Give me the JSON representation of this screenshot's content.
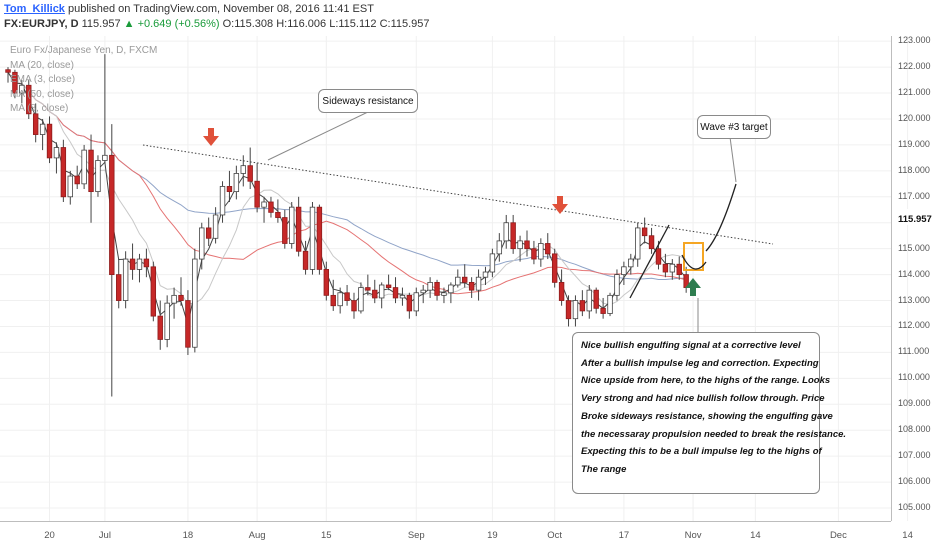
{
  "header": {
    "author": "Tom_Killick",
    "published_text": " published on TradingView.com, November 08, 2016 11:41 EST",
    "symbol": "FX:EURJPY, D",
    "last": " 115.957 ",
    "change": "▲ +0.649 (+0.56%)",
    "ohlc": " O:115.308 H:116.006 L:115.112 C:115.957"
  },
  "legend": {
    "title": "Euro Fx/Japanese Yen, D, FXCM",
    "items": [
      "MA (20, close)",
      "EMA (3, close)",
      "MA (50, close)",
      "MA (8, close)"
    ]
  },
  "annotations": {
    "sideways": "Sideways resistance",
    "wave_target": "Wave #3 target",
    "note_lines": [
      "Nice bullish engulfing signal at a corrective level",
      "After a bullish impulse leg and correction. Expecting",
      "Nice upside from here, to the highs of the range. Looks",
      "Very strong and had nice bullish follow through. Price",
      "Broke sideways resistance, showing the engulfing gave",
      "the necessaray propulsion needed to break the resistance.",
      "Expecting this to be a bull impulse leg to the highs of",
      "The range"
    ]
  },
  "colors": {
    "bull": "#ffffff",
    "bear": "#c62828",
    "ma20": "#e57373",
    "ema3": "#444444",
    "ma50": "#90a4c8",
    "ma8": "#c8c8c8",
    "arrow_down": "#e0513a",
    "arrow_up": "#2e7d4f",
    "highlight": "#f5a623"
  },
  "chart_data": {
    "type": "candlestick",
    "y_ticks": [
      "105.000",
      "106.000",
      "107.000",
      "108.000",
      "109.000",
      "110.000",
      "111.000",
      "112.000",
      "113.000",
      "114.000",
      "115.000",
      "116.000",
      "117.000",
      "118.000",
      "119.000",
      "120.000",
      "121.000",
      "122.000",
      "123.000"
    ],
    "ylim": [
      104.5,
      123.2
    ],
    "last_price": "115.957",
    "x_ticks": [
      {
        "label": "20",
        "i": 6
      },
      {
        "label": "Jul",
        "i": 14
      },
      {
        "label": "18",
        "i": 26
      },
      {
        "label": "Aug",
        "i": 36
      },
      {
        "label": "15",
        "i": 46
      },
      {
        "label": "Sep",
        "i": 59
      },
      {
        "label": "19",
        "i": 70
      },
      {
        "label": "Oct",
        "i": 79
      },
      {
        "label": "17",
        "i": 89
      },
      {
        "label": "Nov",
        "i": 99
      },
      {
        "label": "14",
        "i": 108
      },
      {
        "label": "Dec",
        "i": 120
      },
      {
        "label": "14",
        "i": 130
      }
    ],
    "candles": [
      [
        121.9,
        122.0,
        121.4,
        121.8
      ],
      [
        121.8,
        121.9,
        120.8,
        121.0
      ],
      [
        121.0,
        121.5,
        120.6,
        121.3
      ],
      [
        121.3,
        121.5,
        120.0,
        120.2
      ],
      [
        120.2,
        120.6,
        119.1,
        119.4
      ],
      [
        119.4,
        120.0,
        118.8,
        119.8
      ],
      [
        119.8,
        120.1,
        118.3,
        118.5
      ],
      [
        118.5,
        119.1,
        117.9,
        118.9
      ],
      [
        118.9,
        119.2,
        116.8,
        117.0
      ],
      [
        117.0,
        118.0,
        116.7,
        117.8
      ],
      [
        117.8,
        118.2,
        117.3,
        117.5
      ],
      [
        117.5,
        119.0,
        117.3,
        118.8
      ],
      [
        118.8,
        119.4,
        116.0,
        117.2
      ],
      [
        117.2,
        118.6,
        117.0,
        118.4
      ],
      [
        118.4,
        122.5,
        118.3,
        118.6
      ],
      [
        118.6,
        119.8,
        109.3,
        114.0
      ],
      [
        114.0,
        114.6,
        112.7,
        113.0
      ],
      [
        113.0,
        114.9,
        112.7,
        114.6
      ],
      [
        114.6,
        115.2,
        113.8,
        114.2
      ],
      [
        114.2,
        114.8,
        113.7,
        114.6
      ],
      [
        114.6,
        115.0,
        113.9,
        114.3
      ],
      [
        114.3,
        114.5,
        112.2,
        112.4
      ],
      [
        112.4,
        113.0,
        111.1,
        111.5
      ],
      [
        111.5,
        113.2,
        111.2,
        112.9
      ],
      [
        112.9,
        113.5,
        112.3,
        113.2
      ],
      [
        113.2,
        113.9,
        112.8,
        113.0
      ],
      [
        113.0,
        113.4,
        110.9,
        111.2
      ],
      [
        111.2,
        115.0,
        111.0,
        114.6
      ],
      [
        114.6,
        116.0,
        114.2,
        115.8
      ],
      [
        115.8,
        116.2,
        115.1,
        115.4
      ],
      [
        115.4,
        116.6,
        115.2,
        116.3
      ],
      [
        116.3,
        117.6,
        116.0,
        117.4
      ],
      [
        117.4,
        118.0,
        116.8,
        117.2
      ],
      [
        117.2,
        118.2,
        116.9,
        117.9
      ],
      [
        117.9,
        118.6,
        117.4,
        118.2
      ],
      [
        118.2,
        118.9,
        117.3,
        117.6
      ],
      [
        117.6,
        118.3,
        116.4,
        116.6
      ],
      [
        116.6,
        117.0,
        116.0,
        116.8
      ],
      [
        116.8,
        117.0,
        116.2,
        116.4
      ],
      [
        116.4,
        116.9,
        116.0,
        116.2
      ],
      [
        116.2,
        116.5,
        115.0,
        115.2
      ],
      [
        115.2,
        116.8,
        115.0,
        116.6
      ],
      [
        116.6,
        117.0,
        114.7,
        114.9
      ],
      [
        114.9,
        115.3,
        114.0,
        114.2
      ],
      [
        114.2,
        116.8,
        114.0,
        116.6
      ],
      [
        116.6,
        116.7,
        114.0,
        114.2
      ],
      [
        114.2,
        114.5,
        113.0,
        113.2
      ],
      [
        113.2,
        113.8,
        112.6,
        112.8
      ],
      [
        112.8,
        113.5,
        112.5,
        113.3
      ],
      [
        113.3,
        113.6,
        112.8,
        113.0
      ],
      [
        113.0,
        113.3,
        112.3,
        112.6
      ],
      [
        112.6,
        113.7,
        112.5,
        113.5
      ],
      [
        113.5,
        114.0,
        113.2,
        113.4
      ],
      [
        113.4,
        113.8,
        112.9,
        113.1
      ],
      [
        113.1,
        113.7,
        112.7,
        113.6
      ],
      [
        113.6,
        114.0,
        113.4,
        113.5
      ],
      [
        113.5,
        113.9,
        112.9,
        113.1
      ],
      [
        113.1,
        113.5,
        112.8,
        113.2
      ],
      [
        113.2,
        113.3,
        112.3,
        112.6
      ],
      [
        112.6,
        113.5,
        112.4,
        113.3
      ],
      [
        113.3,
        113.6,
        112.9,
        113.4
      ],
      [
        113.4,
        113.9,
        113.1,
        113.7
      ],
      [
        113.7,
        113.8,
        113.0,
        113.2
      ],
      [
        113.2,
        113.5,
        112.9,
        113.3
      ],
      [
        113.3,
        113.7,
        112.9,
        113.6
      ],
      [
        113.6,
        114.2,
        113.5,
        113.9
      ],
      [
        113.9,
        114.4,
        113.5,
        113.7
      ],
      [
        113.7,
        113.9,
        113.1,
        113.4
      ],
      [
        113.4,
        114.2,
        113.0,
        113.9
      ],
      [
        113.9,
        114.3,
        113.6,
        114.1
      ],
      [
        114.1,
        115.0,
        113.9,
        114.8
      ],
      [
        114.8,
        115.6,
        114.5,
        115.3
      ],
      [
        115.3,
        116.3,
        115.0,
        116.0
      ],
      [
        116.0,
        116.3,
        114.8,
        115.0
      ],
      [
        115.0,
        115.5,
        114.5,
        115.3
      ],
      [
        115.3,
        115.7,
        114.7,
        115.0
      ],
      [
        115.0,
        115.3,
        114.4,
        114.6
      ],
      [
        114.6,
        115.4,
        114.3,
        115.2
      ],
      [
        115.2,
        115.6,
        114.6,
        114.8
      ],
      [
        114.8,
        115.0,
        113.5,
        113.7
      ],
      [
        113.7,
        114.2,
        112.8,
        113.0
      ],
      [
        113.0,
        113.2,
        112.0,
        112.3
      ],
      [
        112.3,
        113.2,
        112.0,
        113.0
      ],
      [
        113.0,
        113.4,
        112.4,
        112.6
      ],
      [
        112.6,
        113.6,
        112.3,
        113.4
      ],
      [
        113.4,
        113.5,
        112.5,
        112.7
      ],
      [
        112.7,
        113.1,
        112.3,
        112.5
      ],
      [
        112.5,
        113.3,
        112.4,
        113.2
      ],
      [
        113.2,
        114.2,
        113.0,
        114.0
      ],
      [
        114.0,
        114.5,
        113.6,
        114.3
      ],
      [
        114.3,
        114.8,
        114.0,
        114.6
      ],
      [
        114.6,
        116.0,
        114.3,
        115.8
      ],
      [
        115.8,
        116.2,
        115.2,
        115.5
      ],
      [
        115.5,
        115.8,
        114.8,
        115.0
      ],
      [
        115.0,
        115.3,
        114.2,
        114.4
      ],
      [
        114.4,
        114.8,
        113.9,
        114.1
      ],
      [
        114.1,
        114.6,
        113.8,
        114.4
      ],
      [
        114.4,
        114.7,
        113.8,
        114.0
      ],
      [
        114.0,
        114.3,
        113.3,
        113.5
      ]
    ]
  }
}
